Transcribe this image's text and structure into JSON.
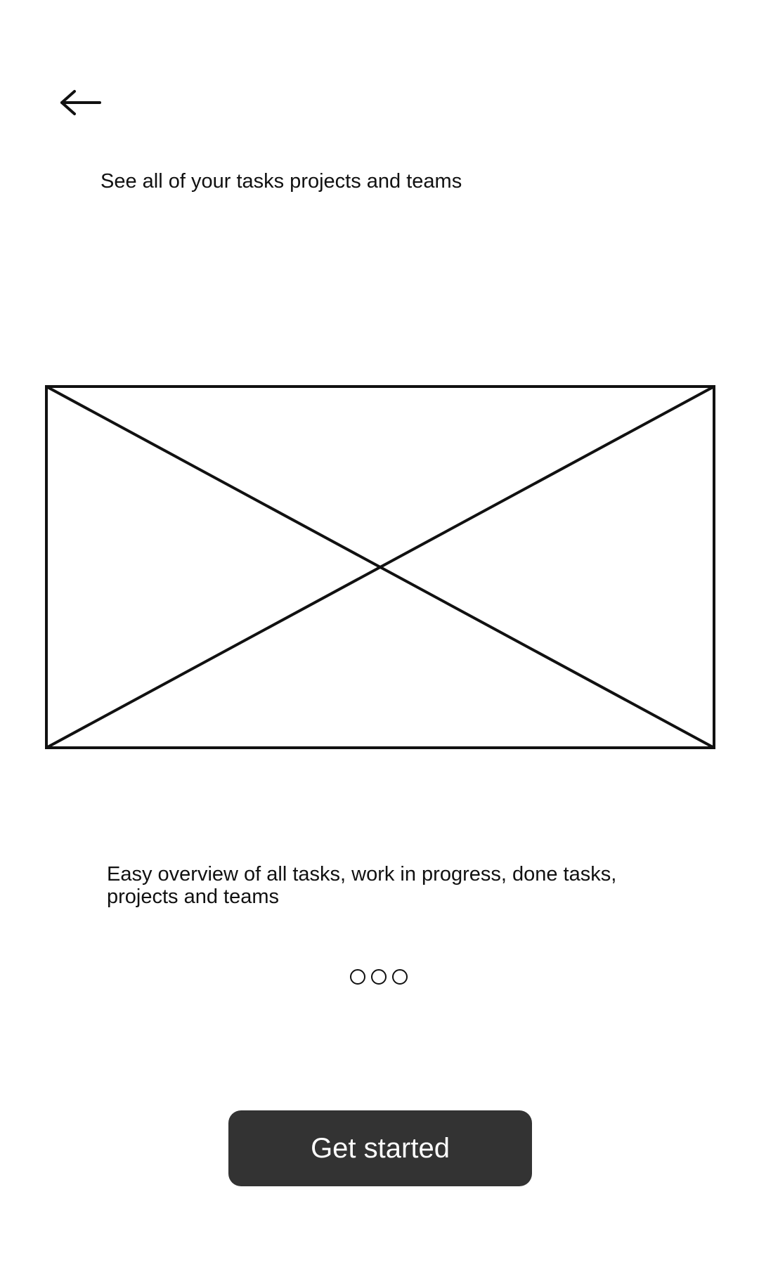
{
  "nav": {
    "back_icon": "arrow-left-icon"
  },
  "headline": "See all of your tasks projects and teams",
  "illustration": {
    "icon": "image-placeholder-icon"
  },
  "description": "Easy overview of all tasks, work in progress, done tasks, projects and teams",
  "pager": {
    "dots": 3
  },
  "cta": {
    "label": "Get started"
  },
  "colors": {
    "button_bg": "#333333",
    "button_text": "#ffffff",
    "stroke": "#111111",
    "background": "#ffffff"
  }
}
